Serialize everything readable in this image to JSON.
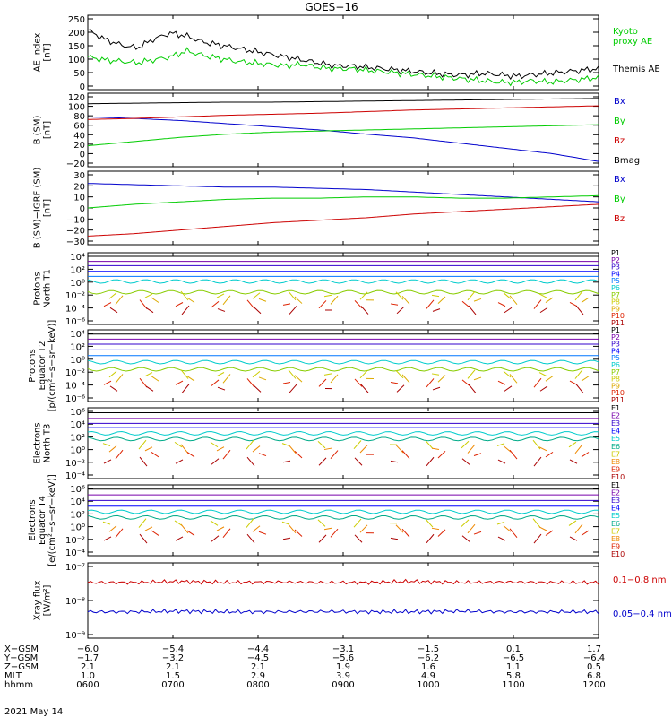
{
  "title": "GOES−16",
  "date_label": "2021 May 14",
  "colors": {
    "black": "#000000",
    "green": "#00cc00",
    "blue": "#0000cc",
    "red": "#cc0000",
    "bright_green": "#00ee00",
    "violet": "#7700aa",
    "purple": "#3300cc",
    "navy": "#0000ff",
    "azure": "#0077ff",
    "cyan": "#00cccc",
    "teal": "#00aa88",
    "lime": "#88cc00",
    "yellow": "#cccc00",
    "gold": "#ddaa00",
    "orange": "#ee8800",
    "red2": "#dd2200",
    "dkred": "#aa0000"
  },
  "chart_data": [
    {
      "type": "line",
      "ylabel": "AE index\n[nT]",
      "yticks": [
        "250",
        "200",
        "150",
        "100",
        "50",
        "0"
      ],
      "ylim": [
        0,
        250
      ],
      "series": [
        {
          "name": "Kyoto\nproxy AE",
          "color": "#00cc00",
          "values": [
            110,
            100,
            95,
            90,
            100,
            110,
            130,
            115,
            105,
            95,
            90,
            85,
            80,
            85,
            75,
            70,
            70,
            65,
            60,
            55,
            50,
            45,
            40,
            35,
            30,
            25,
            25,
            30,
            25,
            30,
            35,
            40
          ]
        },
        {
          "name": "Themis AE",
          "color": "#000000",
          "values": [
            200,
            170,
            150,
            140,
            170,
            190,
            180,
            160,
            150,
            140,
            130,
            120,
            110,
            100,
            90,
            80,
            80,
            75,
            70,
            65,
            60,
            55,
            50,
            50,
            55,
            50,
            45,
            50,
            55,
            60,
            65,
            70
          ]
        }
      ]
    },
    {
      "type": "line",
      "ylabel": "B (SM)\n[nT]",
      "yticks": [
        "120",
        "100",
        "80",
        "60",
        "40",
        "20",
        "0",
        "−20"
      ],
      "ylim": [
        -20,
        120
      ],
      "series": [
        {
          "name": "Bx",
          "color": "#0000cc",
          "values": [
            75,
            72,
            68,
            62,
            56,
            50,
            42,
            35,
            25,
            15,
            5,
            -10
          ]
        },
        {
          "name": "By",
          "color": "#00cc00",
          "values": [
            20,
            28,
            36,
            42,
            46,
            48,
            50,
            52,
            54,
            56,
            58,
            60
          ]
        },
        {
          "name": "Bz",
          "color": "#cc0000",
          "values": [
            70,
            72,
            75,
            78,
            80,
            82,
            85,
            88,
            90,
            92,
            94,
            96
          ]
        },
        {
          "name": "Bmag",
          "color": "#000000",
          "values": [
            100,
            101,
            102,
            103,
            103,
            104,
            105,
            106,
            107,
            108,
            109,
            110
          ]
        }
      ]
    },
    {
      "type": "line",
      "ylabel": "B (SM)−IGRF (SM)\n[nT]",
      "yticks": [
        "30",
        "20",
        "10",
        "0",
        "−10",
        "−20",
        "−30"
      ],
      "ylim": [
        -30,
        30
      ],
      "series": [
        {
          "name": "Bx",
          "color": "#0000cc",
          "values": [
            20,
            19,
            18,
            17,
            17,
            16,
            15,
            13,
            11,
            9,
            7,
            5
          ]
        },
        {
          "name": "By",
          "color": "#00cc00",
          "values": [
            0,
            3,
            5,
            7,
            8,
            8,
            9,
            9,
            8,
            8,
            9,
            10
          ]
        },
        {
          "name": "Bz",
          "color": "#cc0000",
          "values": [
            -23,
            -21,
            -18,
            -15,
            -12,
            -10,
            -8,
            -5,
            -3,
            -1,
            1,
            3
          ]
        }
      ]
    },
    {
      "type": "line",
      "log": true,
      "ylabel": "Protons\nNorth T1",
      "yticks": [
        "10⁴",
        "10²",
        "10⁰",
        "10⁻²",
        "10⁻⁴",
        "10⁻⁶"
      ],
      "ylim": [
        "1e-7",
        "1e4"
      ],
      "series_labels": [
        "P1",
        "P2",
        "P3",
        "P4",
        "P5",
        "P6",
        "P7",
        "P8",
        "P9",
        "P10",
        "P11"
      ]
    },
    {
      "type": "line",
      "log": true,
      "ylabel": "Protons\nEquator T2\n[p/(cm²−s−sr−keV)]",
      "yticks": [
        "10⁴",
        "10²",
        "10⁰",
        "10⁻²",
        "10⁻⁴",
        "10⁻⁶"
      ],
      "ylim": [
        "1e-7",
        "1e4"
      ],
      "series_labels": [
        "P1",
        "P2",
        "P3",
        "P4",
        "P5",
        "P6",
        "P7",
        "P8",
        "P9",
        "P10",
        "P11"
      ]
    },
    {
      "type": "line",
      "log": true,
      "ylabel": "Electrons\nNorth T3",
      "yticks": [
        "10⁶",
        "10⁴",
        "10²",
        "10⁰",
        "10⁻²",
        "10⁻⁴"
      ],
      "ylim": [
        "1e-4",
        "1e6"
      ],
      "series_labels": [
        "E1",
        "E2",
        "E3",
        "E4",
        "E5",
        "E6",
        "E7",
        "E8",
        "E9",
        "E10"
      ]
    },
    {
      "type": "line",
      "log": true,
      "ylabel": "Electrons\nEquator T4\n[e/(cm²−s−sr−keV)]",
      "yticks": [
        "10⁶",
        "10⁴",
        "10²",
        "10⁰",
        "10⁻²",
        "10⁻⁴"
      ],
      "ylim": [
        "1e-4",
        "1e6"
      ],
      "series_labels": [
        "E1",
        "E2",
        "E3",
        "E4",
        "E5",
        "E6",
        "E7",
        "E8",
        "E9",
        "E10"
      ]
    },
    {
      "type": "line",
      "log": true,
      "ylabel": "Xray flux\n[W/m²]",
      "yticks": [
        "10⁻⁷",
        "10⁻⁸",
        "10⁻⁹"
      ],
      "ylim": [
        "1e-9",
        "1e-7"
      ],
      "series": [
        {
          "name": "0.1−0.8 nm",
          "color": "#cc0000",
          "values": [
            "3e-8",
            "3e-8",
            "3.2e-8",
            "3e-8",
            "3.1e-8",
            "3e-8",
            "3e-8",
            "3.2e-8",
            "3e-8",
            "3.1e-8",
            "3e-8",
            "3e-8"
          ]
        },
        {
          "name": "0.05−0.4 nm",
          "color": "#0000cc",
          "values": [
            "5e-9",
            "5e-9",
            "5.2e-9",
            "5e-9",
            "5e-9",
            "5.1e-9",
            "5e-9",
            "5e-9",
            "5.2e-9",
            "5e-9",
            "5e-9",
            "5e-9"
          ]
        }
      ]
    }
  ],
  "orbit_table": {
    "row_labels": [
      "X−GSM",
      "Y−GSM",
      "Z−GSM",
      "MLT",
      "hhmm"
    ],
    "columns": [
      [
        "−6.0",
        "−1.7",
        "2.1",
        "1.0",
        "0600"
      ],
      [
        "−5.4",
        "−3.2",
        "2.1",
        "1.5",
        "0700"
      ],
      [
        "−4.4",
        "−4.5",
        "2.1",
        "2.9",
        "0800"
      ],
      [
        "−3.1",
        "−5.6",
        "1.9",
        "3.9",
        "0900"
      ],
      [
        "−1.5",
        "−6.2",
        "1.6",
        "4.9",
        "1000"
      ],
      [
        "0.1",
        "−6.5",
        "1.1",
        "5.8",
        "1100"
      ],
      [
        "1.7",
        "−6.4",
        "0.5",
        "6.8",
        "1200"
      ]
    ]
  }
}
